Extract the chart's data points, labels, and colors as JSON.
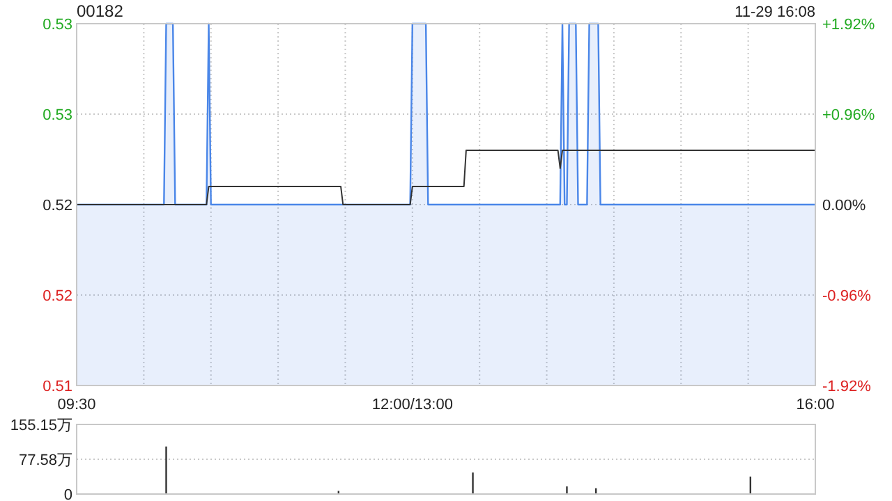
{
  "chart_data": [
    {
      "type": "line",
      "title": "00182",
      "annotations": [
        "11-29 16:08"
      ],
      "categories": [
        "09:30",
        null,
        null,
        null,
        null,
        null,
        null,
        null,
        null,
        null,
        null,
        null,
        null,
        null,
        null,
        null,
        null,
        null,
        null,
        null,
        null,
        null,
        null,
        null,
        null,
        null,
        null,
        null,
        null,
        null,
        null,
        null,
        null,
        null,
        null,
        null,
        null,
        null,
        null,
        null,
        null,
        null,
        null,
        null,
        null,
        null,
        null,
        null,
        null,
        null,
        null,
        null,
        null,
        null,
        null,
        null,
        null,
        null,
        null,
        null,
        null,
        null,
        null,
        null,
        null,
        null,
        null,
        null,
        null,
        null,
        null,
        null,
        null,
        null,
        null,
        null,
        null,
        null,
        null,
        null,
        null,
        null,
        null,
        null,
        null,
        null,
        null,
        null,
        null,
        null,
        null,
        null,
        null,
        null,
        null,
        null,
        null,
        null,
        null,
        null,
        null,
        null,
        null,
        null,
        null,
        null,
        null,
        null,
        null,
        null,
        null,
        null,
        null,
        null,
        null,
        null,
        null,
        null,
        null,
        null,
        null,
        null,
        null,
        null,
        null,
        null,
        null,
        null,
        null,
        null,
        null,
        null,
        null,
        null,
        null,
        null,
        null,
        null,
        null,
        null,
        null,
        null,
        null,
        null,
        null,
        null,
        null,
        null,
        null,
        null,
        "12:00/13:00",
        null,
        null,
        null,
        null,
        null,
        null,
        null,
        null,
        null,
        null,
        null,
        null,
        null,
        null,
        null,
        null,
        null,
        null,
        null,
        null,
        null,
        null,
        null,
        null,
        null,
        null,
        null,
        null,
        null,
        null,
        null,
        null,
        null,
        null,
        null,
        null,
        null,
        null,
        null,
        null,
        null,
        null,
        null,
        null,
        null,
        null,
        null,
        null,
        null,
        null,
        null,
        null,
        null,
        null,
        null,
        null,
        null,
        null,
        null,
        null,
        null,
        null,
        null,
        null,
        null,
        null,
        null,
        null,
        null,
        null,
        null,
        null,
        null,
        null,
        null,
        null,
        null,
        null,
        null,
        null,
        null,
        null,
        null,
        null,
        null,
        null,
        null,
        null,
        null,
        null,
        null,
        null,
        null,
        null,
        null,
        null,
        null,
        null,
        null,
        null,
        null,
        null,
        null,
        null,
        null,
        null,
        null,
        null,
        null,
        null,
        null,
        null,
        null,
        null,
        null,
        null,
        null,
        null,
        null,
        null,
        null,
        null,
        null,
        null,
        null,
        null,
        null,
        null,
        null,
        null,
        null,
        null,
        null,
        null,
        null,
        null,
        null,
        null,
        null,
        null,
        null,
        null,
        null,
        null,
        null,
        null,
        null,
        null,
        null,
        null,
        null,
        null,
        null,
        null,
        null,
        null,
        null,
        null,
        null,
        null,
        null,
        null,
        null,
        null,
        null,
        null,
        null,
        null,
        null,
        null,
        null,
        null,
        null,
        null,
        null,
        null,
        null,
        null,
        null,
        "16:00"
      ],
      "ylim": [
        0.51,
        0.53
      ],
      "yticks": [
        {
          "value": 0.51,
          "label": "0.51"
        },
        {
          "value": 0.515,
          "label": "0.52"
        },
        {
          "value": 0.52,
          "label": "0.52"
        },
        {
          "value": 0.525,
          "label": "0.53"
        },
        {
          "value": 0.53,
          "label": "0.53"
        }
      ],
      "y2lim": [
        -1.92,
        1.92
      ],
      "y2ticks": [
        {
          "value": -1.92,
          "label": "-1.92%"
        },
        {
          "value": -0.96,
          "label": "-0.96%"
        },
        {
          "value": 0,
          "label": "0.00%"
        },
        {
          "value": 0.96,
          "label": "+0.96%"
        },
        {
          "value": 1.92,
          "label": "+1.92%"
        }
      ],
      "grid": true,
      "series": [
        {
          "type": "area",
          "color": "#4a86e8",
          "values": [
            0.52,
            0.52,
            0.52,
            0.52,
            0.52,
            0.52,
            0.52,
            0.52,
            0.52,
            0.52,
            0.52,
            0.52,
            0.52,
            0.52,
            0.52,
            0.52,
            0.52,
            0.52,
            0.52,
            0.52,
            0.52,
            0.52,
            0.52,
            0.52,
            0.52,
            0.52,
            0.52,
            0.52,
            0.52,
            0.52,
            0.52,
            0.52,
            0.52,
            0.52,
            0.52,
            0.52,
            0.52,
            0.52,
            0.52,
            0.52,
            0.53,
            0.53,
            0.53,
            0.53,
            0.52,
            0.52,
            0.52,
            0.52,
            0.52,
            0.52,
            0.52,
            0.52,
            0.52,
            0.52,
            0.52,
            0.52,
            0.52,
            0.52,
            0.52,
            0.53,
            0.52,
            0.52,
            0.52,
            0.52,
            0.52,
            0.52,
            0.52,
            0.52,
            0.52,
            0.52,
            0.52,
            0.52,
            0.52,
            0.52,
            0.52,
            0.52,
            0.52,
            0.52,
            0.52,
            0.52,
            0.52,
            0.52,
            0.52,
            0.52,
            0.52,
            0.52,
            0.52,
            0.52,
            0.52,
            0.52,
            0.52,
            0.52,
            0.52,
            0.52,
            0.52,
            0.52,
            0.52,
            0.52,
            0.52,
            0.52,
            0.52,
            0.52,
            0.52,
            0.52,
            0.52,
            0.52,
            0.52,
            0.52,
            0.52,
            0.52,
            0.52,
            0.52,
            0.52,
            0.52,
            0.52,
            0.52,
            0.52,
            0.52,
            0.52,
            0.52,
            0.52,
            0.52,
            0.52,
            0.52,
            0.52,
            0.52,
            0.52,
            0.52,
            0.52,
            0.52,
            0.52,
            0.52,
            0.52,
            0.52,
            0.52,
            0.52,
            0.52,
            0.52,
            0.52,
            0.52,
            0.52,
            0.52,
            0.52,
            0.52,
            0.52,
            0.52,
            0.52,
            0.52,
            0.52,
            0.52,
            0.53,
            0.53,
            0.53,
            0.53,
            0.53,
            0.53,
            0.53,
            0.52,
            0.52,
            0.52,
            0.52,
            0.52,
            0.52,
            0.52,
            0.52,
            0.52,
            0.52,
            0.52,
            0.52,
            0.52,
            0.52,
            0.52,
            0.52,
            0.52,
            0.52,
            0.52,
            0.52,
            0.52,
            0.52,
            0.52,
            0.52,
            0.52,
            0.52,
            0.52,
            0.52,
            0.52,
            0.52,
            0.52,
            0.52,
            0.52,
            0.52,
            0.52,
            0.52,
            0.52,
            0.52,
            0.52,
            0.52,
            0.52,
            0.52,
            0.52,
            0.52,
            0.52,
            0.52,
            0.52,
            0.52,
            0.52,
            0.52,
            0.52,
            0.52,
            0.52,
            0.52,
            0.52,
            0.52,
            0.52,
            0.52,
            0.52,
            0.52,
            0.53,
            0.52,
            0.52,
            0.53,
            0.53,
            0.53,
            0.53,
            0.52,
            0.52,
            0.52,
            0.52,
            0.52,
            0.53,
            0.53,
            0.53,
            0.53,
            0.53,
            0.52,
            0.52,
            0.52,
            0.52,
            0.52,
            0.52,
            0.52,
            0.52,
            0.52,
            0.52,
            0.52,
            0.52,
            0.52,
            0.52,
            0.52,
            0.52,
            0.52,
            0.52,
            0.52,
            0.52,
            0.52,
            0.52,
            0.52,
            0.52,
            0.52,
            0.52,
            0.52,
            0.52,
            0.52,
            0.52,
            0.52,
            0.52,
            0.52,
            0.52,
            0.52,
            0.52,
            0.52,
            0.52,
            0.52,
            0.52,
            0.52,
            0.52,
            0.52,
            0.52,
            0.52,
            0.52,
            0.52,
            0.52,
            0.52,
            0.52,
            0.52,
            0.52,
            0.52,
            0.52,
            0.52,
            0.52,
            0.52,
            0.52,
            0.52,
            0.52,
            0.52,
            0.52,
            0.52,
            0.52,
            0.52,
            0.52,
            0.52,
            0.52,
            0.52,
            0.52,
            0.52,
            0.52,
            0.52,
            0.52,
            0.52,
            0.52,
            0.52,
            0.52,
            0.52,
            0.52,
            0.52,
            0.52,
            0.52,
            0.52,
            0.52,
            0.52,
            0.52,
            0.52,
            0.52,
            0.52,
            0.52,
            0.52,
            0.52,
            0.52,
            0.52,
            0.52,
            0.52
          ]
        },
        {
          "color": "#333333",
          "values": [
            0.52,
            0.52,
            0.52,
            0.52,
            0.52,
            0.52,
            0.52,
            0.52,
            0.52,
            0.52,
            0.52,
            0.52,
            0.52,
            0.52,
            0.52,
            0.52,
            0.52,
            0.52,
            0.52,
            0.52,
            0.52,
            0.52,
            0.52,
            0.52,
            0.52,
            0.52,
            0.52,
            0.52,
            0.52,
            0.52,
            0.52,
            0.52,
            0.52,
            0.52,
            0.52,
            0.52,
            0.52,
            0.52,
            0.52,
            0.52,
            0.52,
            0.52,
            0.52,
            0.52,
            0.52,
            0.52,
            0.52,
            0.52,
            0.52,
            0.52,
            0.52,
            0.52,
            0.52,
            0.52,
            0.52,
            0.52,
            0.52,
            0.52,
            0.52,
            0.521,
            0.521,
            0.521,
            0.521,
            0.521,
            0.521,
            0.521,
            0.521,
            0.521,
            0.521,
            0.521,
            0.521,
            0.521,
            0.521,
            0.521,
            0.521,
            0.521,
            0.521,
            0.521,
            0.521,
            0.521,
            0.521,
            0.521,
            0.521,
            0.521,
            0.521,
            0.521,
            0.521,
            0.521,
            0.521,
            0.521,
            0.521,
            0.521,
            0.521,
            0.521,
            0.521,
            0.521,
            0.521,
            0.521,
            0.521,
            0.521,
            0.521,
            0.521,
            0.521,
            0.521,
            0.521,
            0.521,
            0.521,
            0.521,
            0.521,
            0.521,
            0.521,
            0.521,
            0.521,
            0.521,
            0.521,
            0.521,
            0.521,
            0.521,
            0.521,
            0.52,
            0.52,
            0.52,
            0.52,
            0.52,
            0.52,
            0.52,
            0.52,
            0.52,
            0.52,
            0.52,
            0.52,
            0.52,
            0.52,
            0.52,
            0.52,
            0.52,
            0.52,
            0.52,
            0.52,
            0.52,
            0.52,
            0.52,
            0.52,
            0.52,
            0.52,
            0.52,
            0.52,
            0.52,
            0.52,
            0.52,
            0.521,
            0.521,
            0.521,
            0.521,
            0.521,
            0.521,
            0.521,
            0.521,
            0.521,
            0.521,
            0.521,
            0.521,
            0.521,
            0.521,
            0.521,
            0.521,
            0.521,
            0.521,
            0.521,
            0.521,
            0.521,
            0.521,
            0.521,
            0.521,
            0.523,
            0.523,
            0.523,
            0.523,
            0.523,
            0.523,
            0.523,
            0.523,
            0.523,
            0.523,
            0.523,
            0.523,
            0.523,
            0.523,
            0.523,
            0.523,
            0.523,
            0.523,
            0.523,
            0.523,
            0.523,
            0.523,
            0.523,
            0.523,
            0.523,
            0.523,
            0.523,
            0.523,
            0.523,
            0.523,
            0.523,
            0.523,
            0.523,
            0.523,
            0.523,
            0.523,
            0.523,
            0.523,
            0.523,
            0.523,
            0.523,
            0.523,
            0.522,
            0.523,
            0.523,
            0.523,
            0.523,
            0.523,
            0.523,
            0.523,
            0.523,
            0.523,
            0.523,
            0.523,
            0.523,
            0.523,
            0.523,
            0.523,
            0.523,
            0.523,
            0.523,
            0.523,
            0.523,
            0.523,
            0.523,
            0.523,
            0.523,
            0.523,
            0.523,
            0.523,
            0.523,
            0.523,
            0.523,
            0.523,
            0.523,
            0.523,
            0.523,
            0.523,
            0.523,
            0.523,
            0.523,
            0.523,
            0.523,
            0.523,
            0.523,
            0.523,
            0.523,
            0.523,
            0.523,
            0.523,
            0.523,
            0.523,
            0.523,
            0.523,
            0.523,
            0.523,
            0.523,
            0.523,
            0.523,
            0.523,
            0.523,
            0.523,
            0.523,
            0.523,
            0.523,
            0.523,
            0.523,
            0.523,
            0.523,
            0.523,
            0.523,
            0.523,
            0.523,
            0.523,
            0.523,
            0.523,
            0.523,
            0.523,
            0.523,
            0.523,
            0.523,
            0.523,
            0.523,
            0.523,
            0.523,
            0.523,
            0.523,
            0.523,
            0.523,
            0.523,
            0.523,
            0.523,
            0.523,
            0.523,
            0.523,
            0.523,
            0.523,
            0.523,
            0.523,
            0.523,
            0.523,
            0.523,
            0.523,
            0.523,
            0.523,
            0.523,
            0.523,
            0.523,
            0.523,
            0.523,
            0.523,
            0.523,
            0.523,
            0.523,
            0.523,
            0.523,
            0.523
          ]
        }
      ]
    },
    {
      "type": "bar",
      "ylim": [
        0,
        155.15
      ],
      "categories": [
        null,
        null,
        null,
        null,
        null,
        null,
        null,
        null,
        null,
        null,
        null,
        null,
        null,
        null,
        null,
        null,
        null,
        null,
        null,
        null,
        null,
        null,
        null,
        null,
        null,
        null,
        null,
        null,
        null,
        null,
        null,
        null,
        null,
        null,
        null,
        null,
        null,
        null,
        null,
        null,
        null,
        null,
        null,
        null,
        null,
        null,
        null,
        null,
        null,
        null,
        null,
        null,
        null,
        null,
        null,
        null,
        null,
        null,
        null,
        null,
        null,
        null,
        null,
        null,
        null,
        null,
        null,
        null,
        null,
        null,
        null,
        null,
        null,
        null,
        null,
        null,
        null,
        null,
        null,
        null,
        null,
        null,
        null,
        null,
        null,
        null,
        null,
        null,
        null,
        null,
        null,
        null,
        null,
        null,
        null,
        null,
        null,
        null,
        null,
        null,
        null,
        null,
        null,
        null,
        null,
        null,
        null,
        null,
        null,
        null,
        null,
        null,
        null,
        null,
        null,
        null,
        null,
        null,
        null,
        null,
        null,
        null,
        null,
        null,
        null,
        null,
        null,
        null,
        null,
        null,
        null,
        null,
        null,
        null,
        null,
        null,
        null,
        null,
        null,
        null,
        null,
        null,
        null,
        null,
        null,
        null,
        null,
        null,
        null,
        null,
        null,
        null,
        null,
        null,
        null,
        null,
        null,
        null,
        null,
        null,
        null,
        null,
        null,
        null,
        null,
        null,
        null,
        null,
        null,
        null,
        null,
        null,
        null,
        null,
        null,
        null,
        null,
        null,
        null,
        null,
        null,
        null,
        null,
        null,
        null,
        null,
        null,
        null,
        null,
        null,
        null,
        null,
        null,
        null,
        null,
        null,
        null,
        null,
        null,
        null,
        null,
        null,
        null,
        null,
        null,
        null,
        null,
        null,
        null,
        null,
        null,
        null,
        null,
        null,
        null,
        null,
        null,
        null,
        null,
        null,
        null,
        null,
        null,
        null,
        null,
        null,
        null,
        null,
        null,
        null,
        null,
        null,
        null,
        null,
        null,
        null,
        null,
        null,
        null,
        null,
        null,
        null,
        null,
        null,
        null,
        null,
        null,
        null,
        null,
        null,
        null,
        null,
        null,
        null,
        null,
        null,
        null,
        null,
        null,
        null,
        null,
        null,
        null,
        null,
        null,
        null,
        null,
        null,
        null,
        null,
        null,
        null,
        null,
        null,
        null,
        null,
        null,
        null,
        null,
        null,
        null,
        null,
        null,
        null,
        null,
        null,
        null,
        null,
        null,
        null,
        null,
        null,
        null,
        null,
        null,
        null,
        null,
        null,
        null,
        null,
        null,
        null,
        null,
        null,
        null,
        null,
        null,
        null,
        null,
        null,
        null,
        null,
        null,
        null,
        null,
        null,
        null,
        null,
        null,
        null,
        null,
        null,
        null,
        null,
        null,
        null,
        null,
        null,
        null,
        null,
        null
      ],
      "yticks": [
        0,
        {
          "value": 77.58,
          "label": "77.58万"
        },
        {
          "value": 155.15,
          "label": "155.15万"
        }
      ],
      "grid": "y",
      "tick_labels": "y",
      "color": "#333333",
      "values": [
        null,
        null,
        null,
        null,
        null,
        null,
        null,
        null,
        null,
        null,
        null,
        null,
        null,
        null,
        null,
        null,
        null,
        null,
        null,
        null,
        null,
        null,
        null,
        null,
        null,
        null,
        null,
        null,
        null,
        null,
        null,
        null,
        null,
        null,
        null,
        null,
        null,
        null,
        null,
        null,
        106,
        null,
        null,
        null,
        null,
        null,
        null,
        null,
        null,
        null,
        null,
        null,
        null,
        null,
        null,
        null,
        null,
        null,
        null,
        null,
        null,
        null,
        null,
        null,
        null,
        null,
        null,
        null,
        null,
        null,
        null,
        null,
        null,
        null,
        null,
        null,
        null,
        null,
        null,
        null,
        null,
        null,
        null,
        null,
        null,
        null,
        null,
        null,
        null,
        null,
        null,
        null,
        null,
        null,
        null,
        null,
        null,
        null,
        null,
        null,
        null,
        null,
        null,
        null,
        null,
        null,
        null,
        null,
        null,
        null,
        null,
        null,
        null,
        null,
        null,
        null,
        null,
        7,
        null,
        null,
        null,
        null,
        null,
        null,
        null,
        null,
        null,
        null,
        null,
        null,
        null,
        null,
        null,
        null,
        null,
        null,
        null,
        null,
        null,
        null,
        null,
        null,
        null,
        null,
        null,
        null,
        null,
        null,
        null,
        null,
        null,
        null,
        null,
        null,
        null,
        null,
        null,
        null,
        null,
        null,
        null,
        null,
        null,
        null,
        null,
        null,
        null,
        null,
        null,
        null,
        null,
        null,
        null,
        null,
        null,
        null,
        null,
        48,
        null,
        null,
        null,
        null,
        null,
        null,
        null,
        null,
        null,
        null,
        null,
        null,
        null,
        null,
        null,
        null,
        null,
        null,
        null,
        null,
        null,
        null,
        null,
        null,
        null,
        null,
        null,
        null,
        null,
        null,
        null,
        null,
        null,
        null,
        null,
        null,
        null,
        null,
        null,
        null,
        null,
        17,
        null,
        null,
        null,
        null,
        null,
        null,
        null,
        null,
        null,
        null,
        null,
        null,
        13,
        null,
        null,
        null,
        null,
        null,
        null,
        null,
        null,
        null,
        null,
        null,
        null,
        null,
        null,
        null,
        null,
        null,
        null,
        null,
        null,
        null,
        null,
        null,
        null,
        null,
        null,
        null,
        null,
        null,
        null,
        null,
        null,
        null,
        null,
        null,
        null,
        null,
        null,
        null,
        null,
        null,
        null,
        null,
        null,
        null,
        null,
        null,
        null,
        null,
        null,
        null,
        null,
        null,
        null,
        null,
        null,
        null,
        null,
        null,
        null,
        null,
        null,
        null,
        null,
        null,
        null,
        null,
        null,
        39,
        null,
        null,
        null,
        null,
        null,
        null,
        null,
        null,
        null,
        null,
        null,
        null,
        null,
        null,
        null,
        null,
        null,
        null,
        null,
        null,
        null,
        null,
        null,
        null,
        null,
        null,
        null,
        null,
        null
      ]
    }
  ]
}
